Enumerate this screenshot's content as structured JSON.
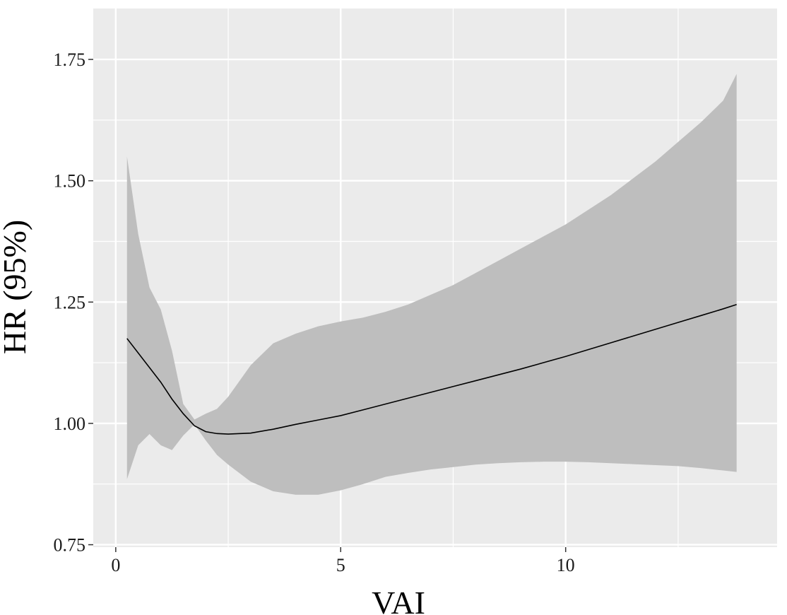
{
  "chart_data": {
    "type": "line",
    "title": "",
    "xlabel": "VAI",
    "ylabel": "HR (95%)",
    "xlim": [
      -0.5,
      14.7
    ],
    "ylim": [
      0.745,
      1.855
    ],
    "x_ticks": [
      0,
      5,
      10
    ],
    "x_tick_labels": [
      "0",
      "5",
      "10"
    ],
    "x_minor_ticks": [
      2.5,
      7.5,
      12.5
    ],
    "y_ticks": [
      0.75,
      1.0,
      1.25,
      1.5,
      1.75
    ],
    "y_tick_labels": [
      "0.75",
      "1.00",
      "1.25",
      "1.50",
      "1.75"
    ],
    "y_minor_ticks": [
      0.875,
      1.125,
      1.375,
      1.625
    ],
    "grid": true,
    "colors": {
      "panel": "#ebebeb",
      "grid": "#ffffff",
      "ribbon": "#bebebe",
      "line": "#000000"
    },
    "series": [
      {
        "x": [
          0.25,
          0.5,
          0.75,
          1.0,
          1.25,
          1.5,
          1.75,
          2.0,
          2.25,
          2.5,
          3.0,
          3.5,
          4.0,
          4.5,
          5.0,
          5.5,
          6.0,
          6.5,
          7.0,
          7.5,
          8.0,
          8.5,
          9.0,
          9.5,
          10.0,
          10.5,
          11.0,
          11.5,
          12.0,
          12.5,
          13.0,
          13.5,
          13.8
        ],
        "y": [
          1.175,
          1.145,
          1.115,
          1.085,
          1.05,
          1.02,
          0.995,
          0.983,
          0.979,
          0.978,
          0.98,
          0.988,
          0.998,
          1.007,
          1.016,
          1.028,
          1.04,
          1.052,
          1.064,
          1.076,
          1.088,
          1.1,
          1.112,
          1.125,
          1.138,
          1.152,
          1.166,
          1.18,
          1.194,
          1.208,
          1.222,
          1.236,
          1.245
        ],
        "lower": [
          0.885,
          0.955,
          0.978,
          0.955,
          0.945,
          0.975,
          0.998,
          0.965,
          0.935,
          0.915,
          0.88,
          0.86,
          0.853,
          0.853,
          0.862,
          0.875,
          0.89,
          0.898,
          0.905,
          0.91,
          0.915,
          0.918,
          0.92,
          0.921,
          0.921,
          0.92,
          0.918,
          0.916,
          0.914,
          0.912,
          0.908,
          0.903,
          0.9
        ],
        "upper": [
          1.55,
          1.39,
          1.28,
          1.235,
          1.15,
          1.04,
          1.008,
          1.02,
          1.03,
          1.055,
          1.12,
          1.165,
          1.185,
          1.2,
          1.21,
          1.218,
          1.23,
          1.245,
          1.265,
          1.285,
          1.31,
          1.335,
          1.36,
          1.385,
          1.41,
          1.44,
          1.47,
          1.505,
          1.54,
          1.58,
          1.62,
          1.665,
          1.72
        ]
      }
    ]
  }
}
